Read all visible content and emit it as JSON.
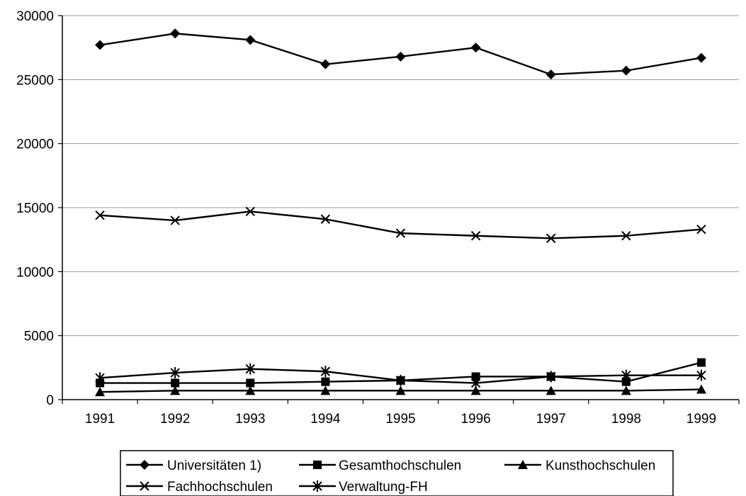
{
  "chart_data": {
    "type": "line",
    "title": "",
    "xlabel": "",
    "ylabel": "",
    "categories": [
      "1991",
      "1992",
      "1993",
      "1994",
      "1995",
      "1996",
      "1997",
      "1998",
      "1999"
    ],
    "ylim": [
      0,
      30000
    ],
    "yticks": [
      0,
      5000,
      10000,
      15000,
      20000,
      25000,
      30000
    ],
    "grid": "horizontal",
    "legend_position": "bottom",
    "series": [
      {
        "name": "Universitäten 1)",
        "marker": "diamond",
        "values": [
          27700,
          28600,
          28100,
          26200,
          26800,
          27500,
          25400,
          25700,
          26700
        ]
      },
      {
        "name": "Gesamthochschulen",
        "marker": "square",
        "values": [
          1300,
          1300,
          1300,
          1400,
          1500,
          1800,
          1800,
          1400,
          2900
        ]
      },
      {
        "name": "Kunsthochschulen",
        "marker": "triangle",
        "values": [
          600,
          700,
          700,
          700,
          700,
          700,
          700,
          700,
          800
        ]
      },
      {
        "name": "Fachhochschulen",
        "marker": "x",
        "values": [
          14400,
          14000,
          14700,
          14100,
          13000,
          12800,
          12600,
          12800,
          13300
        ]
      },
      {
        "name": "Verwaltung-FH",
        "marker": "star",
        "values": [
          1700,
          2100,
          2400,
          2200,
          1500,
          1300,
          1800,
          1900,
          1900
        ]
      }
    ],
    "legend_items": [
      "Universitäten 1)",
      "Gesamthochschulen",
      "Kunsthochschulen",
      "Fachhochschulen",
      "Verwaltung-FH"
    ]
  }
}
